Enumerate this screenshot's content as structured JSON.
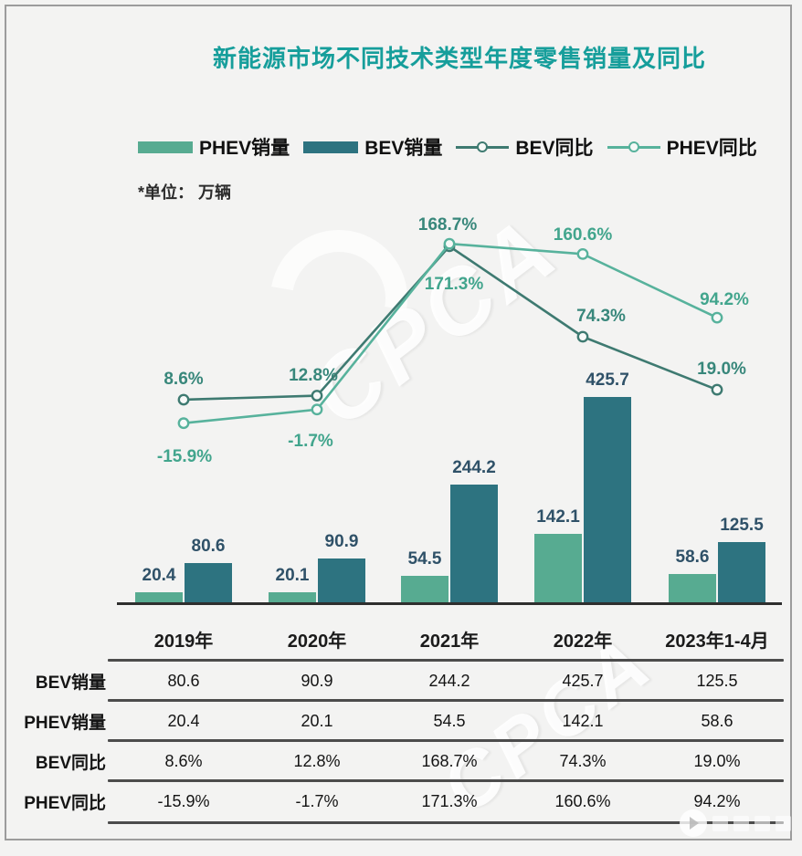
{
  "title": "新能源市场不同技术类型年度零售销量及同比",
  "unit_note": "*单位： 万辆",
  "watermark_text": "CPCA",
  "colors": {
    "phev_bar": "#57ab91",
    "bev_bar": "#2d7380",
    "bev_line": "#3e7a71",
    "phev_line": "#57b29c",
    "title": "#169e9b",
    "bar_label": "#2f5168",
    "bev_pct_label": "#38877b",
    "phev_pct_label": "#42a58d",
    "axis": "#2e2e2e"
  },
  "legend": [
    {
      "label": "PHEV销量",
      "type": "bar",
      "color_key": "phev_bar"
    },
    {
      "label": "BEV销量",
      "type": "bar",
      "color_key": "bev_bar"
    },
    {
      "label": "BEV同比",
      "type": "line",
      "color_key": "bev_line"
    },
    {
      "label": "PHEV同比",
      "type": "line",
      "color_key": "phev_line"
    }
  ],
  "chart_data": {
    "type": "bar+line combo",
    "unit": "万辆",
    "legend_position": "top",
    "grid": false,
    "categories": [
      "2019年",
      "2020年",
      "2021年",
      "2022年",
      "2023年1-4月"
    ],
    "bar_series": [
      {
        "name": "PHEV销量",
        "values": [
          20.4,
          20.1,
          54.5,
          142.1,
          58.6
        ],
        "labels": [
          "20.4",
          "20.1",
          "54.5",
          "142.1",
          "58.6"
        ]
      },
      {
        "name": "BEV销量",
        "values": [
          80.6,
          90.9,
          244.2,
          425.7,
          125.5
        ],
        "labels": [
          "80.6",
          "90.9",
          "244.2",
          "425.7",
          "125.5"
        ]
      }
    ],
    "line_series": [
      {
        "name": "BEV同比",
        "values_pct": [
          8.6,
          12.8,
          168.7,
          74.3,
          19.0
        ],
        "labels": [
          "8.6%",
          "12.8%",
          "168.7%",
          "74.3%",
          "19.0%"
        ]
      },
      {
        "name": "PHEV同比",
        "values_pct": [
          -15.9,
          -1.7,
          171.3,
          160.6,
          94.2
        ],
        "labels": [
          "-15.9%",
          "-1.7%",
          "171.3%",
          "160.6%",
          "94.2%"
        ]
      }
    ],
    "bar_axis_range": [
      0,
      450
    ],
    "pct_axis_note": "percent axis unlabeled; values shown as data labels"
  },
  "table": {
    "header": [
      "2019年",
      "2020年",
      "2021年",
      "2022年",
      "2023年1-4月"
    ],
    "rows": [
      {
        "label": "BEV销量",
        "values": [
          "80.6",
          "90.9",
          "244.2",
          "425.7",
          "125.5"
        ]
      },
      {
        "label": "PHEV销量",
        "values": [
          "20.4",
          "20.1",
          "54.5",
          "142.1",
          "58.6"
        ]
      },
      {
        "label": "BEV同比",
        "values": [
          "8.6%",
          "12.8%",
          "168.7%",
          "74.3%",
          "19.0%"
        ]
      },
      {
        "label": "PHEV同比",
        "values": [
          "-15.9%",
          "-1.7%",
          "171.3%",
          "160.6%",
          "94.2%"
        ]
      }
    ]
  }
}
